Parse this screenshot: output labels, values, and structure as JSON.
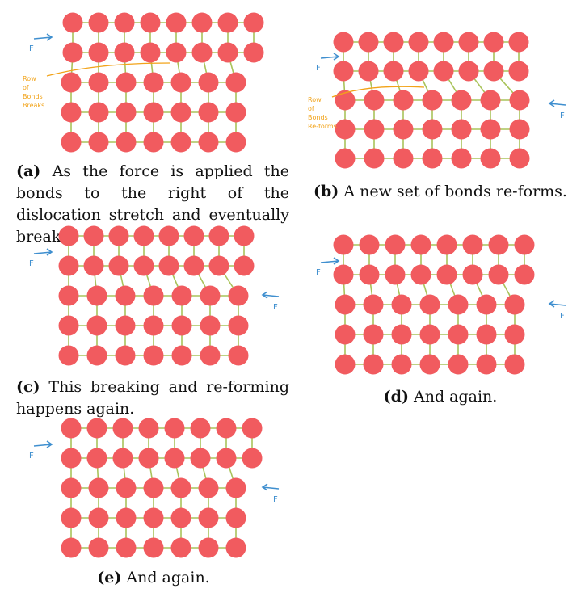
{
  "force_label": "F",
  "panels": [
    {
      "id": "a",
      "caption_letter": "(a)",
      "caption_text": "As the force is applied the bonds to the right of the dislocation stretch and eventually break.",
      "annotation": [
        "Row",
        "of",
        "Bonds",
        "Breaks"
      ]
    },
    {
      "id": "b",
      "caption_letter": "(b)",
      "caption_text": "A new set of bonds re-forms.",
      "annotation": [
        "Row",
        "of",
        "Bonds",
        "Re-forms"
      ]
    },
    {
      "id": "c",
      "caption_letter": "(c)",
      "caption_text": "This breaking and re-forming happens again."
    },
    {
      "id": "d",
      "caption_letter": "(d)",
      "caption_text": "And again."
    },
    {
      "id": "e",
      "caption_letter": "(e)",
      "caption_text": "And again."
    }
  ]
}
